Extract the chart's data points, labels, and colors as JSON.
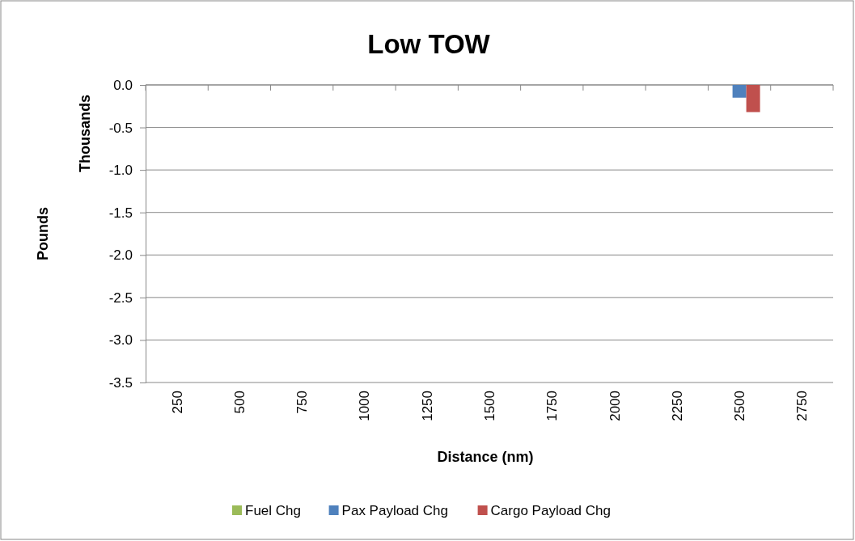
{
  "chart_data": {
    "type": "bar",
    "title": "Low TOW",
    "xlabel": "Distance (nm)",
    "ylabel": "Pounds",
    "annotations": [
      "Thousands"
    ],
    "categories": [
      "250",
      "500",
      "750",
      "1000",
      "1250",
      "1500",
      "1750",
      "2000",
      "2250",
      "2500",
      "2750"
    ],
    "series": [
      {
        "name": "Fuel Chg",
        "color": "#9bbb59",
        "values": [
          0,
          0,
          0,
          0,
          0,
          0,
          0,
          0,
          0,
          0,
          0
        ]
      },
      {
        "name": "Pax Payload Chg",
        "color": "#4f81bd",
        "values": [
          0,
          0,
          0,
          0,
          0,
          0,
          0,
          0,
          0,
          -0.15,
          0
        ]
      },
      {
        "name": "Cargo Payload Chg",
        "color": "#c0504d",
        "values": [
          0,
          0,
          0,
          0,
          0,
          0,
          0,
          0,
          0,
          -0.32,
          0
        ]
      }
    ],
    "ylim": [
      -3.5,
      0
    ],
    "yticks": [
      {
        "value": 0,
        "label": "0.0"
      },
      {
        "value": -0.5,
        "label": "-0.5"
      },
      {
        "value": -1,
        "label": "-1.0"
      },
      {
        "value": -1.5,
        "label": "-1.5"
      },
      {
        "value": -2,
        "label": "-2.0"
      },
      {
        "value": -2.5,
        "label": "-2.5"
      },
      {
        "value": -3,
        "label": "-3.0"
      },
      {
        "value": -3.5,
        "label": "-3.5"
      }
    ],
    "grid": "y",
    "legend": "bottom"
  }
}
